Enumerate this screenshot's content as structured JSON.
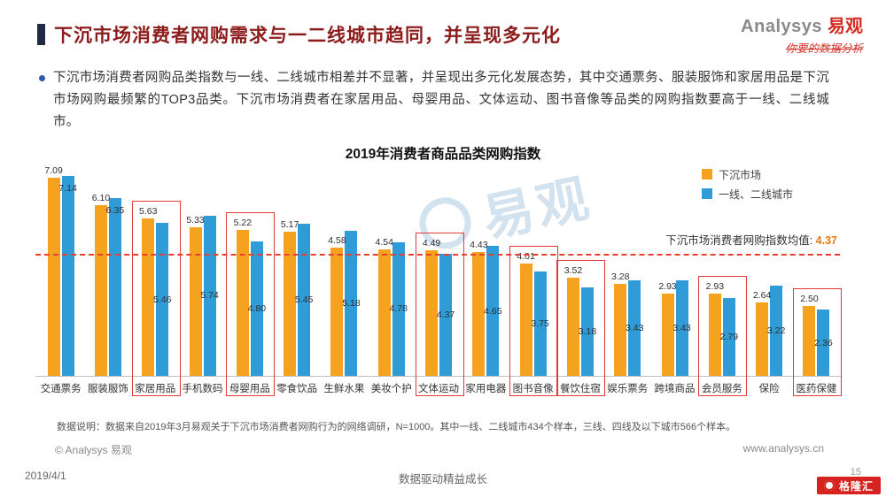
{
  "header": {
    "title": "下沉市场消费者网购需求与一二线城市趋同，并呈现多元化",
    "logo_en": "Analysys",
    "logo_cn": "易观",
    "logo_tagline": "你要的数据分析",
    "summary": "下沉市场消费者网购品类指数与一线、二线城市相差并不显著，并呈现出多元化发展态势，其中交通票务、服装服饰和家居用品是下沉市场网购最频繁的TOP3品类。下沉市场消费者在家居用品、母婴用品、文体运动、图书音像等品类的网购指数要高于一线、二线城市。"
  },
  "chart_data": {
    "type": "bar",
    "title": "2019年消费者商品品类网购指数",
    "categories": [
      "交通票务",
      "服装服饰",
      "家居用品",
      "手机数码",
      "母婴用品",
      "零食饮品",
      "生鲜水果",
      "美妆个护",
      "文体运动",
      "家用电器",
      "图书音像",
      "餐饮住宿",
      "娱乐票务",
      "跨境商品",
      "会员服务",
      "保险",
      "医药保健"
    ],
    "series": [
      {
        "name": "下沉市场",
        "color": "#F5A31F",
        "values": [
          7.09,
          6.1,
          5.63,
          5.33,
          5.22,
          5.17,
          4.58,
          4.54,
          4.49,
          4.43,
          4.01,
          3.52,
          3.28,
          2.93,
          2.93,
          2.64,
          2.5
        ]
      },
      {
        "name": "一线、二线城市",
        "color": "#2F9CD8",
        "values": [
          7.14,
          6.35,
          5.46,
          5.74,
          4.8,
          5.45,
          5.18,
          4.78,
          4.37,
          4.65,
          3.75,
          3.18,
          3.43,
          3.43,
          2.79,
          3.22,
          2.36
        ]
      }
    ],
    "highlighted_categories": [
      "家居用品",
      "母婴用品",
      "文体运动",
      "图书音像",
      "餐饮住宿",
      "会员服务",
      "医药保健"
    ],
    "mean_line": {
      "label": "下沉市场消费者网购指数均值:",
      "value": "4.37"
    },
    "ylim": [
      0,
      7.5
    ],
    "grid": false,
    "legend_position": "top-right",
    "xlabel": "",
    "ylabel": ""
  },
  "footer": {
    "note": "数据说明：数据来自2019年3月易观关于下沉市场消费者网购行为的网络调研，N=1000。其中一线、二线城市434个样本，三线、四线及以下城市566个样本。",
    "copyright": "© Analysys 易观",
    "website": "www.analysys.cn",
    "date": "2019/4/1",
    "slogan": "数据驱动精益成长",
    "page_number": "15",
    "badge": "格隆汇"
  },
  "colors": {
    "accent_orange": "#F5A31F",
    "accent_blue": "#2F9CD8",
    "title_red": "#8C1B1B",
    "highlight_box_red": "#E03A3A",
    "mean_value_orange": "#E8790A"
  }
}
